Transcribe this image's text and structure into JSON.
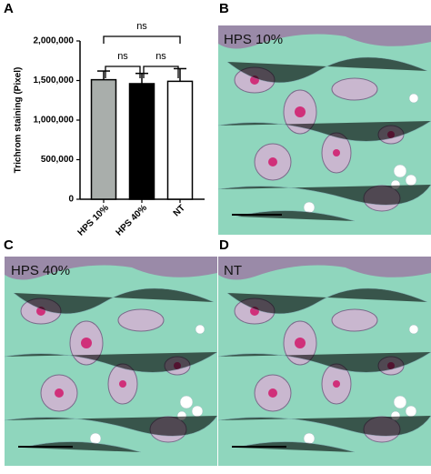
{
  "panel_letters": [
    "A",
    "B",
    "C",
    "D"
  ],
  "chart_data": {
    "type": "bar",
    "y_label": "Trichrom staining (Pixel)",
    "categories": [
      "HPS 10%",
      "HPS 40%",
      "NT"
    ],
    "values": [
      1510000,
      1460000,
      1490000
    ],
    "errors": [
      110000,
      130000,
      160000
    ],
    "colors": [
      "#a9aeab",
      "#000000",
      "#ffffff"
    ],
    "ylim": [
      0,
      2000000
    ],
    "yticks": [
      0,
      {
        "value": 500000,
        "label": "500,000"
      },
      {
        "value": 1000000,
        "label": "1,000,000"
      },
      {
        "value": 1500000,
        "label": "1,500,000"
      },
      {
        "value": 2000000,
        "label": "2,000,000"
      }
    ],
    "comparisons": [
      {
        "between": [
          "HPS 10%",
          "HPS 40%"
        ],
        "label": "ns"
      },
      {
        "between": [
          "HPS 40%",
          "NT"
        ],
        "label": "ns"
      },
      {
        "between": [
          "HPS 10%",
          "NT"
        ],
        "label": "ns"
      }
    ]
  },
  "images": [
    {
      "label": "HPS 10%"
    },
    {
      "label": "HPS 40%"
    },
    {
      "label": "NT"
    }
  ]
}
